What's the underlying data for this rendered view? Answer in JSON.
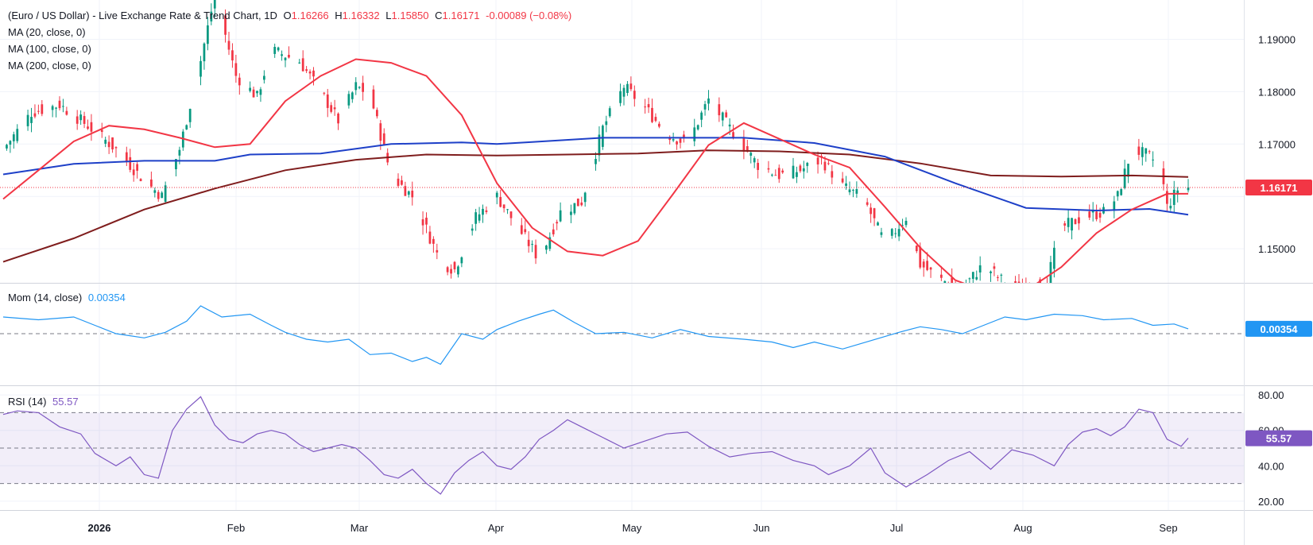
{
  "header": {
    "symbol_title": "(Euro / US Dollar) - Live Exchange Rate & Trend Chart, 1D",
    "open_label": "O",
    "open_value": "1.16266",
    "high_label": "H",
    "high_value": "1.16332",
    "low_label": "L",
    "low_value": "1.15850",
    "close_label": "C",
    "close_value": "1.16171",
    "change": "-0.00089 (−0.08%)",
    "ma20": "MA (20, close, 0)",
    "ma100": "MA (100, close, 0)",
    "ma200": "MA (200, close, 0)"
  },
  "momentum": {
    "label": "Mom (14, close)",
    "value": "0.00354"
  },
  "rsi": {
    "label": "RSI (14)",
    "value": "55.57"
  },
  "colors": {
    "up": "#089981",
    "down": "#f23645",
    "ma20": "#f23645",
    "ma100": "#1e40c8",
    "ma200": "#7f1d1d",
    "momentum": "#2196f3",
    "rsi": "#7e57c2"
  },
  "chart_data": {
    "type": "line",
    "x_labels": [
      "2026",
      "Feb",
      "Mar",
      "Apr",
      "May",
      "Jun",
      "Jul",
      "Aug",
      "Sep"
    ],
    "price_axis": {
      "ticks": [
        "1.19000",
        "1.18000",
        "1.17000",
        "1.15000"
      ],
      "last_price": "1.16171",
      "ylim": [
        1.1435,
        1.1975
      ]
    },
    "momentum_axis": {
      "last_value": "0.00354"
    },
    "rsi_axis": {
      "ticks": [
        "80.00",
        "60.00",
        "40.00",
        "20.00"
      ],
      "last_value": "55.57",
      "bands": [
        30,
        50,
        70
      ]
    },
    "ma20": [
      [
        0,
        1.1595
      ],
      [
        10,
        1.165
      ],
      [
        20,
        1.1705
      ],
      [
        30,
        1.1735
      ],
      [
        40,
        1.1728
      ],
      [
        50,
        1.1712
      ],
      [
        60,
        1.1694
      ],
      [
        70,
        1.17
      ],
      [
        80,
        1.1782
      ],
      [
        90,
        1.183
      ],
      [
        100,
        1.1862
      ],
      [
        110,
        1.1855
      ],
      [
        120,
        1.183
      ],
      [
        130,
        1.1755
      ],
      [
        140,
        1.1625
      ],
      [
        150,
        1.154
      ],
      [
        160,
        1.1495
      ],
      [
        170,
        1.1487
      ],
      [
        180,
        1.1515
      ],
      [
        190,
        1.1605
      ],
      [
        200,
        1.1698
      ],
      [
        210,
        1.174
      ],
      [
        220,
        1.171
      ],
      [
        230,
        1.168
      ],
      [
        240,
        1.1655
      ],
      [
        250,
        1.158
      ],
      [
        260,
        1.1502
      ],
      [
        270,
        1.144
      ],
      [
        280,
        1.1415
      ],
      [
        290,
        1.142
      ],
      [
        300,
        1.1465
      ],
      [
        310,
        1.153
      ],
      [
        320,
        1.1575
      ],
      [
        330,
        1.1605
      ],
      [
        336,
        1.1605
      ]
    ],
    "ma100": [
      [
        0,
        1.1642
      ],
      [
        20,
        1.1662
      ],
      [
        40,
        1.1668
      ],
      [
        60,
        1.1668
      ],
      [
        70,
        1.168
      ],
      [
        90,
        1.1682
      ],
      [
        110,
        1.17
      ],
      [
        130,
        1.1703
      ],
      [
        140,
        1.17
      ],
      [
        150,
        1.1704
      ],
      [
        170,
        1.1712
      ],
      [
        190,
        1.1712
      ],
      [
        210,
        1.1712
      ],
      [
        230,
        1.1702
      ],
      [
        250,
        1.1676
      ],
      [
        270,
        1.1625
      ],
      [
        290,
        1.1578
      ],
      [
        310,
        1.1573
      ],
      [
        325,
        1.1576
      ],
      [
        336,
        1.1565
      ]
    ],
    "ma200": [
      [
        0,
        1.1475
      ],
      [
        20,
        1.152
      ],
      [
        40,
        1.1575
      ],
      [
        60,
        1.1615
      ],
      [
        80,
        1.165
      ],
      [
        100,
        1.167
      ],
      [
        120,
        1.168
      ],
      [
        140,
        1.1678
      ],
      [
        160,
        1.168
      ],
      [
        180,
        1.1682
      ],
      [
        200,
        1.1688
      ],
      [
        220,
        1.1686
      ],
      [
        240,
        1.168
      ],
      [
        260,
        1.1663
      ],
      [
        280,
        1.164
      ],
      [
        300,
        1.1638
      ],
      [
        320,
        1.164
      ],
      [
        336,
        1.1637
      ]
    ],
    "close": [
      [
        0,
        1.169
      ],
      [
        8,
        1.176
      ],
      [
        16,
        1.1775
      ],
      [
        24,
        1.1735
      ],
      [
        32,
        1.169
      ],
      [
        40,
        1.163
      ],
      [
        45,
        1.16
      ],
      [
        50,
        1.169
      ],
      [
        56,
        1.186
      ],
      [
        60,
        1.1985
      ],
      [
        66,
        1.183
      ],
      [
        72,
        1.179
      ],
      [
        76,
        1.188
      ],
      [
        84,
        1.1858
      ],
      [
        90,
        1.18
      ],
      [
        95,
        1.1745
      ],
      [
        100,
        1.181
      ],
      [
        104,
        1.1795
      ],
      [
        110,
        1.164
      ],
      [
        116,
        1.16
      ],
      [
        124,
        1.1475
      ],
      [
        128,
        1.146
      ],
      [
        134,
        1.156
      ],
      [
        140,
        1.16
      ],
      [
        148,
        1.152
      ],
      [
        152,
        1.148
      ],
      [
        158,
        1.157
      ],
      [
        164,
        1.159
      ],
      [
        170,
        1.173
      ],
      [
        176,
        1.181
      ],
      [
        182,
        1.177
      ],
      [
        188,
        1.172
      ],
      [
        194,
        1.17
      ],
      [
        200,
        1.1785
      ],
      [
        206,
        1.173
      ],
      [
        214,
        1.166
      ],
      [
        220,
        1.164
      ],
      [
        226,
        1.165
      ],
      [
        232,
        1.167
      ],
      [
        238,
        1.162
      ],
      [
        244,
        1.1595
      ],
      [
        250,
        1.151
      ],
      [
        256,
        1.156
      ],
      [
        260,
        1.147
      ],
      [
        266,
        1.144
      ],
      [
        272,
        1.1425
      ],
      [
        278,
        1.147
      ],
      [
        284,
        1.1435
      ],
      [
        290,
        1.142
      ],
      [
        296,
        1.144
      ],
      [
        300,
        1.154
      ],
      [
        306,
        1.156
      ],
      [
        312,
        1.157
      ],
      [
        316,
        1.16
      ],
      [
        320,
        1.169
      ],
      [
        324,
        1.168
      ],
      [
        328,
        1.166
      ],
      [
        330,
        1.158
      ],
      [
        334,
        1.1625
      ],
      [
        336,
        1.1617
      ]
    ],
    "momentum": [
      [
        0,
        0.012
      ],
      [
        10,
        0.01
      ],
      [
        20,
        0.012
      ],
      [
        26,
        0.006
      ],
      [
        32,
        0.0
      ],
      [
        40,
        -0.003
      ],
      [
        46,
        0.001
      ],
      [
        52,
        0.009
      ],
      [
        56,
        0.02
      ],
      [
        62,
        0.012
      ],
      [
        70,
        0.014
      ],
      [
        76,
        0.006
      ],
      [
        80,
        0.001
      ],
      [
        86,
        -0.004
      ],
      [
        92,
        -0.006
      ],
      [
        98,
        -0.004
      ],
      [
        104,
        -0.015
      ],
      [
        110,
        -0.014
      ],
      [
        116,
        -0.02
      ],
      [
        120,
        -0.017
      ],
      [
        124,
        -0.022
      ],
      [
        130,
        0.0
      ],
      [
        136,
        -0.004
      ],
      [
        140,
        0.003
      ],
      [
        146,
        0.009
      ],
      [
        152,
        0.014
      ],
      [
        156,
        0.017
      ],
      [
        162,
        0.008
      ],
      [
        168,
        0.0
      ],
      [
        176,
        0.001
      ],
      [
        184,
        -0.003
      ],
      [
        192,
        0.003
      ],
      [
        200,
        -0.002
      ],
      [
        210,
        -0.004
      ],
      [
        218,
        -0.006
      ],
      [
        224,
        -0.01
      ],
      [
        230,
        -0.006
      ],
      [
        238,
        -0.011
      ],
      [
        246,
        -0.005
      ],
      [
        254,
        0.001
      ],
      [
        260,
        0.005
      ],
      [
        266,
        0.003
      ],
      [
        272,
        0.0
      ],
      [
        278,
        0.006
      ],
      [
        284,
        0.012
      ],
      [
        290,
        0.01
      ],
      [
        298,
        0.014
      ],
      [
        306,
        0.013
      ],
      [
        312,
        0.01
      ],
      [
        320,
        0.011
      ],
      [
        326,
        0.006
      ],
      [
        332,
        0.007
      ],
      [
        336,
        0.0035
      ]
    ],
    "rsi": [
      [
        0,
        69
      ],
      [
        4,
        71
      ],
      [
        10,
        70
      ],
      [
        16,
        62
      ],
      [
        22,
        58
      ],
      [
        26,
        47
      ],
      [
        32,
        40
      ],
      [
        36,
        45
      ],
      [
        40,
        35
      ],
      [
        44,
        33
      ],
      [
        48,
        60
      ],
      [
        52,
        72
      ],
      [
        56,
        79
      ],
      [
        60,
        63
      ],
      [
        64,
        55
      ],
      [
        68,
        53
      ],
      [
        72,
        58
      ],
      [
        76,
        60
      ],
      [
        80,
        58
      ],
      [
        84,
        52
      ],
      [
        88,
        48
      ],
      [
        92,
        50
      ],
      [
        96,
        52
      ],
      [
        100,
        50
      ],
      [
        104,
        43
      ],
      [
        108,
        35
      ],
      [
        112,
        33
      ],
      [
        116,
        38
      ],
      [
        120,
        30
      ],
      [
        124,
        24
      ],
      [
        128,
        36
      ],
      [
        132,
        43
      ],
      [
        136,
        48
      ],
      [
        140,
        40
      ],
      [
        144,
        38
      ],
      [
        148,
        45
      ],
      [
        152,
        55
      ],
      [
        156,
        60
      ],
      [
        160,
        66
      ],
      [
        164,
        62
      ],
      [
        170,
        56
      ],
      [
        176,
        50
      ],
      [
        182,
        54
      ],
      [
        188,
        58
      ],
      [
        194,
        59
      ],
      [
        200,
        51
      ],
      [
        206,
        45
      ],
      [
        212,
        47
      ],
      [
        218,
        48
      ],
      [
        224,
        43
      ],
      [
        230,
        40
      ],
      [
        234,
        35
      ],
      [
        240,
        40
      ],
      [
        246,
        50
      ],
      [
        250,
        36
      ],
      [
        256,
        28
      ],
      [
        262,
        35
      ],
      [
        268,
        43
      ],
      [
        274,
        48
      ],
      [
        280,
        38
      ],
      [
        286,
        49
      ],
      [
        292,
        46
      ],
      [
        298,
        40
      ],
      [
        302,
        52
      ],
      [
        306,
        59
      ],
      [
        310,
        61
      ],
      [
        314,
        57
      ],
      [
        318,
        62
      ],
      [
        322,
        72
      ],
      [
        326,
        70
      ],
      [
        330,
        55
      ],
      [
        334,
        51
      ],
      [
        336,
        55.6
      ]
    ]
  }
}
